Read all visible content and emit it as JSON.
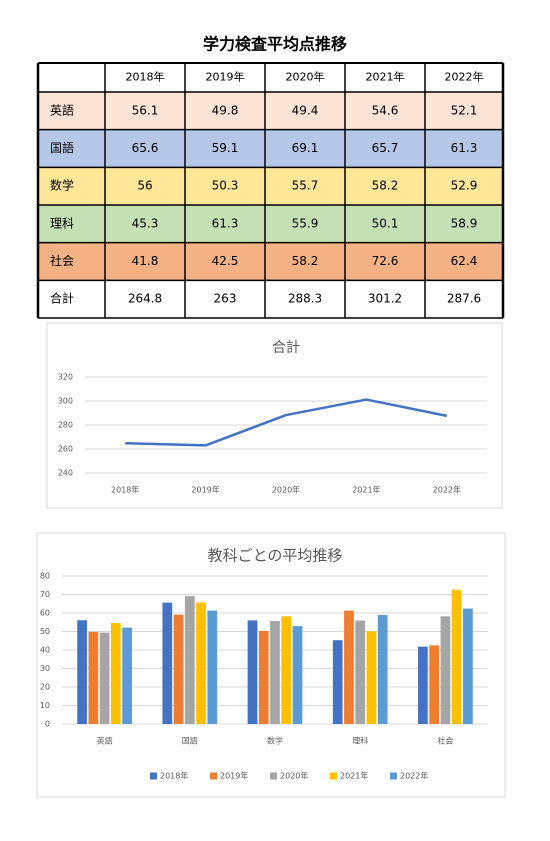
{
  "title": "学力検査平均点推移",
  "table": {
    "columns": [
      "2018年",
      "2019年",
      "2020年",
      "2021年",
      "2022年"
    ],
    "rows": [
      {
        "label": "英語",
        "color": "#fbe3d6",
        "values": [
          56.1,
          49.8,
          49.4,
          54.6,
          52.1
        ]
      },
      {
        "label": "国語",
        "color": "#b4c7e7",
        "values": [
          65.6,
          59.1,
          69.1,
          65.7,
          61.3
        ]
      },
      {
        "label": "数学",
        "color": "#ffe699",
        "values": [
          56,
          50.3,
          55.7,
          58.2,
          52.9
        ]
      },
      {
        "label": "理科",
        "color": "#c5e0b4",
        "values": [
          45.3,
          61.3,
          55.9,
          50.1,
          58.9
        ]
      },
      {
        "label": "社会",
        "color": "#f4b183",
        "values": [
          41.8,
          42.5,
          58.2,
          72.6,
          62.4
        ]
      },
      {
        "label": "合計",
        "color": "#ffffff",
        "values": [
          264.8,
          263,
          288.3,
          301.2,
          287.6
        ]
      }
    ]
  },
  "chart_data": [
    {
      "type": "line",
      "title": "合計",
      "categories": [
        "2018年",
        "2019年",
        "2020年",
        "2021年",
        "2022年"
      ],
      "values": [
        264.8,
        263,
        288.3,
        301.2,
        287.6
      ],
      "color": "#4472c4",
      "ylim": [
        240,
        320
      ],
      "yticks": [
        240,
        260,
        280,
        300,
        320
      ],
      "grid": true
    },
    {
      "type": "bar",
      "title": "教科ごとの平均推移",
      "categories": [
        "英語",
        "国語",
        "数学",
        "理科",
        "社会"
      ],
      "series": [
        {
          "name": "2018年",
          "color": "#4472c4",
          "values": [
            56.1,
            65.6,
            56,
            45.3,
            41.8
          ]
        },
        {
          "name": "2019年",
          "color": "#ed7d31",
          "values": [
            49.8,
            59.1,
            50.3,
            61.3,
            42.5
          ]
        },
        {
          "name": "2020年",
          "color": "#a5a5a5",
          "values": [
            49.4,
            69.1,
            55.7,
            55.9,
            58.2
          ]
        },
        {
          "name": "2021年",
          "color": "#ffc000",
          "values": [
            54.6,
            65.7,
            58.2,
            50.1,
            72.6
          ]
        },
        {
          "name": "2022年",
          "color": "#5b9bd5",
          "values": [
            52.1,
            61.3,
            52.9,
            58.9,
            62.4
          ]
        }
      ],
      "ylim": [
        0,
        80
      ],
      "yticks": [
        0,
        10,
        20,
        30,
        40,
        50,
        60,
        70,
        80
      ],
      "grid": true,
      "legend": "bottom"
    }
  ]
}
